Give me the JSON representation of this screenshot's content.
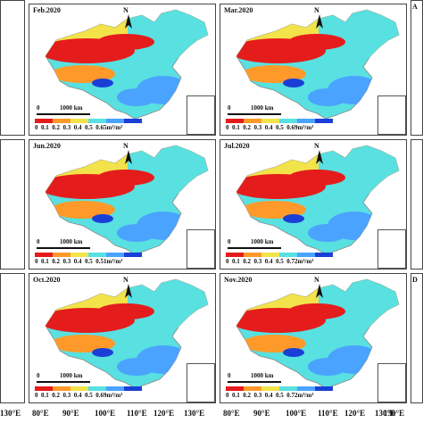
{
  "panels": [
    {
      "month": "Feb.2020",
      "max": "0.65",
      "unit": "m³/m³"
    },
    {
      "month": "Mar.2020",
      "max": "0.69",
      "unit": "m³/m³"
    },
    {
      "month": "Jun.2020",
      "max": "0.51",
      "unit": "m³/m³"
    },
    {
      "month": "Jul.2020",
      "max": "0.72",
      "unit": "m³/m³"
    },
    {
      "month": "Oct.2020",
      "max": "0.69",
      "unit": "m³/m³"
    },
    {
      "month": "Nov.2020",
      "max": "0.72",
      "unit": "m³/m³"
    }
  ],
  "partial_labels": {
    "right_top": "A",
    "right_bottom": "D"
  },
  "scale_label": "1000 km",
  "scale_zero": "0",
  "north": "N",
  "colorbar_ticks": [
    "0",
    "0.1",
    "0.2",
    "0.3",
    "0.4",
    "0.5"
  ],
  "lon_labels": [
    "80°E",
    "90°E",
    "100°E",
    "110°E",
    "120°E",
    "130°E",
    "80°E",
    "90°E",
    "100°E",
    "110°E",
    "120°E",
    "130°E"
  ],
  "left_lon": "130°E",
  "right_lon": "130°E",
  "colors": {
    "high": "#1a3fd6",
    "mid_blue": "#4aa3ff",
    "cyan": "#59e0e0",
    "yellow": "#f2e34a",
    "orange": "#ff9a2a",
    "red": "#e51c1c"
  }
}
